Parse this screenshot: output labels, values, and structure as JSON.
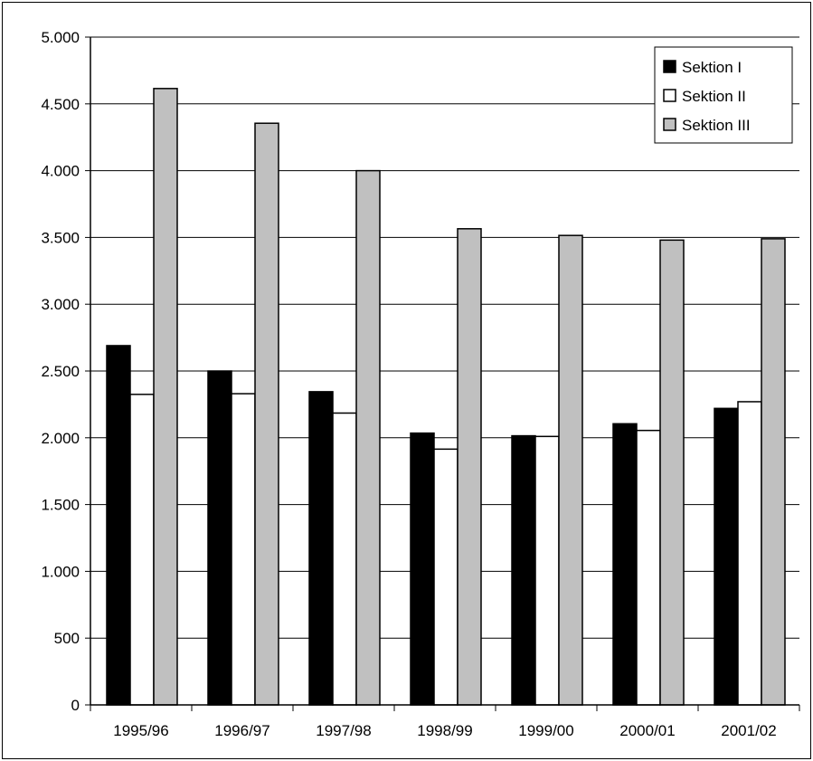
{
  "chart_data": {
    "type": "bar",
    "title": "",
    "xlabel": "",
    "ylabel": "",
    "categories": [
      "1995/96",
      "1996/97",
      "1997/98",
      "1998/99",
      "1999/00",
      "2000/01",
      "2001/02"
    ],
    "series": [
      {
        "name": "Sektion I",
        "color": "#000000",
        "values": [
          2690,
          2500,
          2345,
          2035,
          2015,
          2105,
          2220
        ]
      },
      {
        "name": "Sektion II",
        "color": "#ffffff",
        "values": [
          2325,
          2330,
          2185,
          1915,
          2010,
          2055,
          2270
        ]
      },
      {
        "name": "Sektion III",
        "color": "#c0c0c0",
        "values": [
          4615,
          4355,
          4000,
          3565,
          3515,
          3480,
          3490
        ]
      }
    ],
    "ylim": [
      0,
      5000
    ],
    "yticks": [
      0,
      500,
      1000,
      1500,
      2000,
      2500,
      3000,
      3500,
      4000,
      4500,
      5000
    ],
    "ytick_labels": [
      "0",
      "500",
      "1.000",
      "1.500",
      "2.000",
      "2.500",
      "3.000",
      "3.500",
      "4.000",
      "4.500",
      "5.000"
    ],
    "grid": true,
    "legend_position": "top-right"
  }
}
